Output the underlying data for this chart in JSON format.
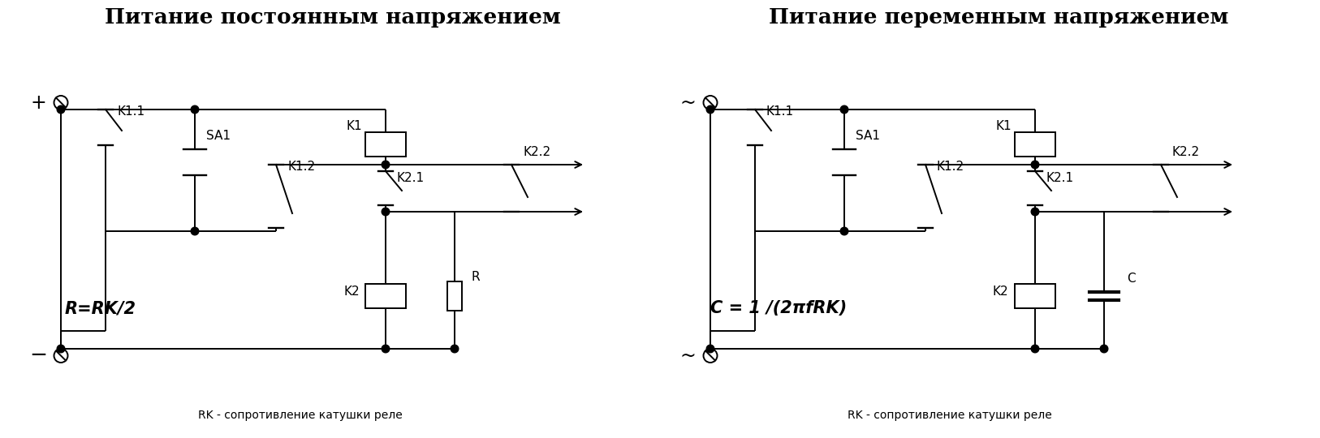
{
  "title_left": "Питание постоянным напряжением",
  "title_right": "Питание переменным напряжением",
  "formula_left": "R=RK/2",
  "formula_right": "C = 1 /(2πfRK)",
  "footnote": "RK - сопротивление катушки реле",
  "bg_color": "#ffffff",
  "title_fontsize": 19,
  "label_fontsize": 11,
  "formula_fontsize": 15,
  "footnote_fontsize": 10
}
